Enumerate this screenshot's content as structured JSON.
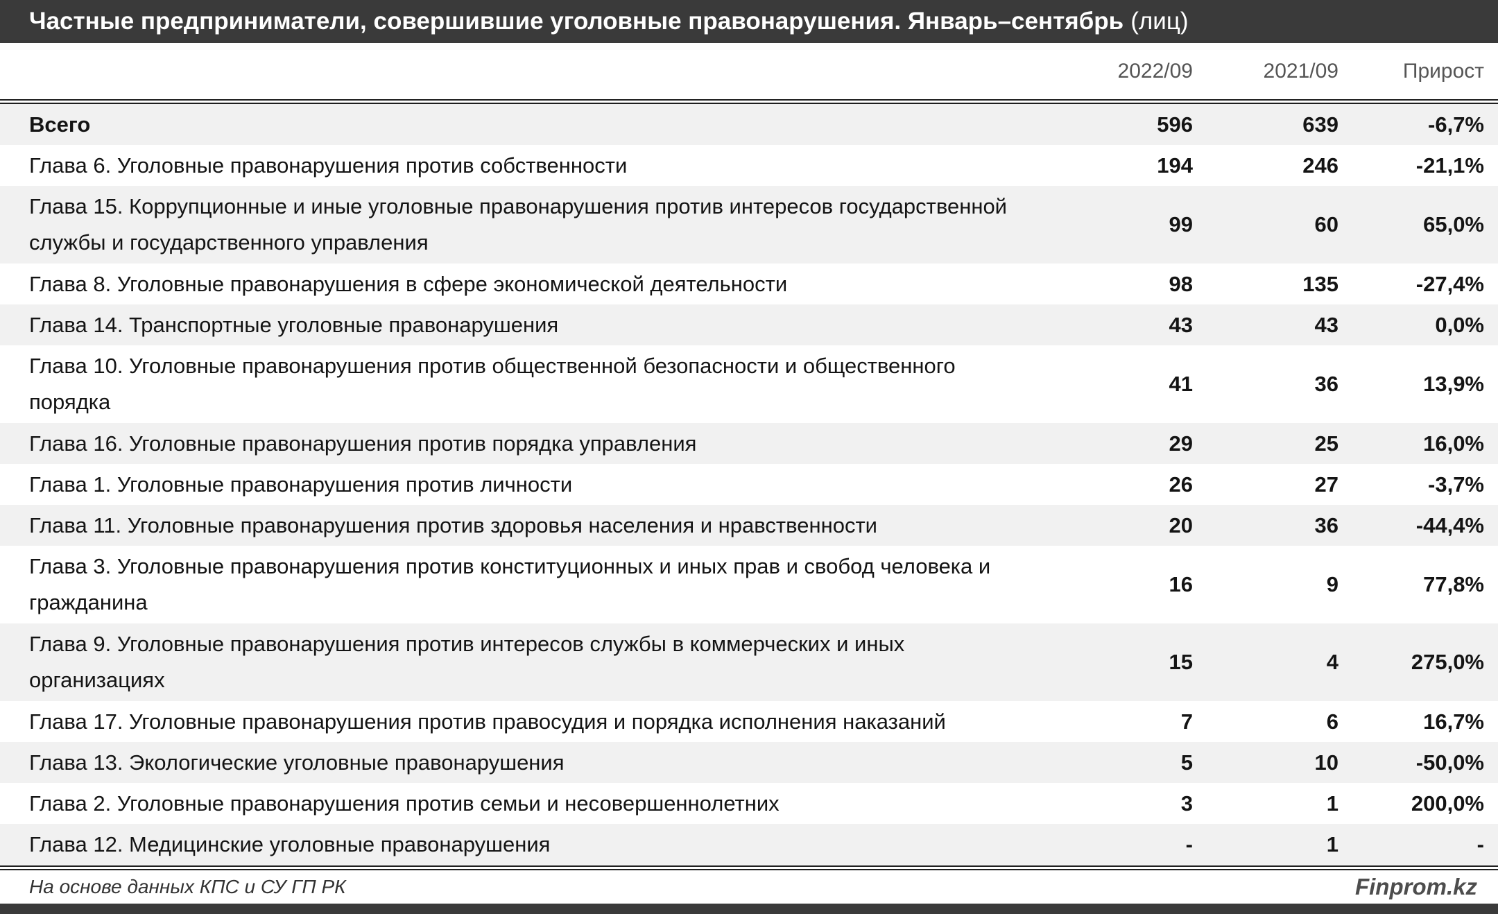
{
  "header": {
    "title_main": "Частные предприниматели, совершившие уголовные правонарушения. Январь–сентябрь",
    "title_suffix": "(лиц)"
  },
  "chart_data": {
    "type": "table",
    "title": "Частные предприниматели, совершившие уголовные правонарушения. Январь–сентябрь (лиц)",
    "columns": [
      "2022/09",
      "2021/09",
      "Прирост"
    ],
    "rows": [
      {
        "label": "Всего",
        "v2022": "596",
        "v2021": "639",
        "growth": "-6,7%"
      },
      {
        "label": "Глава 6. Уголовные правонарушения против собственности",
        "v2022": "194",
        "v2021": "246",
        "growth": "-21,1%"
      },
      {
        "label": "Глава 15. Коррупционные и иные уголовные правонарушения против интересов государственной службы и государственного управления",
        "v2022": "99",
        "v2021": "60",
        "growth": "65,0%"
      },
      {
        "label": "Глава 8. Уголовные правонарушения в сфере экономической деятельности",
        "v2022": "98",
        "v2021": "135",
        "growth": "-27,4%"
      },
      {
        "label": "Глава 14. Транспортные уголовные правонарушения",
        "v2022": "43",
        "v2021": "43",
        "growth": "0,0%"
      },
      {
        "label": "Глава 10. Уголовные правонарушения против общественной безопасности и общественного порядка",
        "v2022": "41",
        "v2021": "36",
        "growth": "13,9%"
      },
      {
        "label": "Глава 16. Уголовные правонарушения против порядка управления",
        "v2022": "29",
        "v2021": "25",
        "growth": "16,0%"
      },
      {
        "label": "Глава 1. Уголовные правонарушения против личности",
        "v2022": "26",
        "v2021": "27",
        "growth": "-3,7%"
      },
      {
        "label": "Глава 11. Уголовные правонарушения против здоровья населения и нравственности",
        "v2022": "20",
        "v2021": "36",
        "growth": "-44,4%"
      },
      {
        "label": "Глава 3. Уголовные правонарушения против конституционных и иных прав и свобод человека и гражданина",
        "v2022": "16",
        "v2021": "9",
        "growth": "77,8%"
      },
      {
        "label": "Глава 9. Уголовные правонарушения против интересов службы в коммерческих и иных организациях",
        "v2022": "15",
        "v2021": "4",
        "growth": "275,0%"
      },
      {
        "label": "Глава 17. Уголовные правонарушения против правосудия и порядка исполнения наказаний",
        "v2022": "7",
        "v2021": "6",
        "growth": "16,7%"
      },
      {
        "label": "Глава 13. Экологические уголовные правонарушения",
        "v2022": "5",
        "v2021": "10",
        "growth": "-50,0%"
      },
      {
        "label": "Глава 2. Уголовные правонарушения против семьи и несовершеннолетних",
        "v2022": "3",
        "v2021": "1",
        "growth": "200,0%"
      },
      {
        "label": "Глава 12. Медицинские уголовные правонарушения",
        "v2022": "-",
        "v2021": "1",
        "growth": "-"
      }
    ]
  },
  "footer": {
    "source": "На основе данных КПС и СУ ГП РК",
    "brand": "Finprom.kz"
  },
  "colors": {
    "header_bg": "#3a3a3a",
    "header_text": "#ffffff",
    "stripe_bg": "#f1f1f1",
    "body_text": "#141414",
    "column_header_text": "#555555",
    "bottom_bar": "#3a3a3a"
  }
}
